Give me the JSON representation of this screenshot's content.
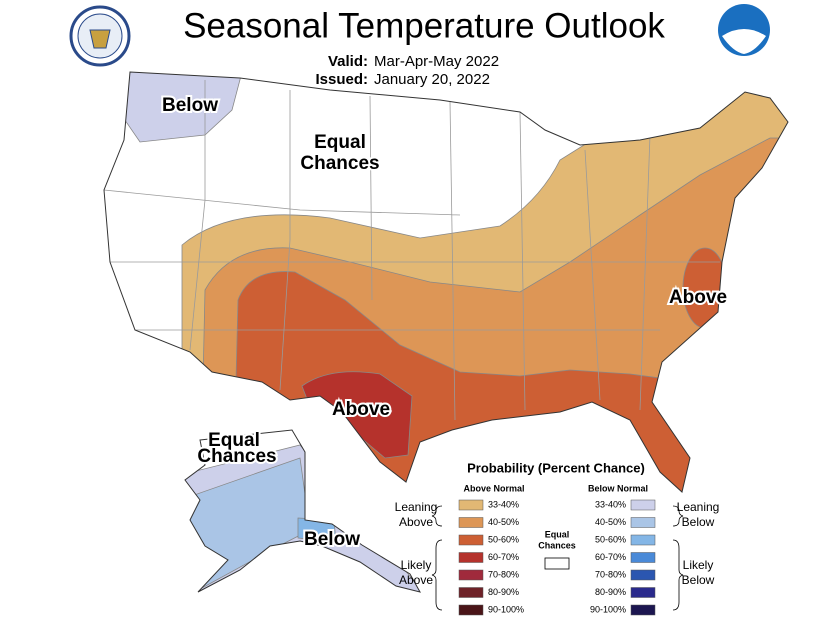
{
  "header": {
    "title": "Seasonal Temperature Outlook",
    "valid_label": "Valid:",
    "valid": "Mar-Apr-May 2022",
    "issued_label": "Issued:",
    "issued": "January 20, 2022"
  },
  "map_labels": [
    {
      "lines": [
        "Below"
      ]
    },
    {
      "lines": [
        "Equal",
        "Chances"
      ]
    },
    {
      "lines": [
        "Above"
      ]
    },
    {
      "lines": [
        "Above"
      ]
    },
    {
      "lines": [
        "Equal",
        "Chances"
      ]
    },
    {
      "lines": [
        "Below"
      ]
    }
  ],
  "legend": {
    "title": "Probability (Percent Chance)",
    "equal": {
      "lines": [
        "Equal",
        "Chances"
      ]
    },
    "above": {
      "heading": "Above Normal",
      "groups": [
        {
          "lines": [
            "Leaning",
            "Above"
          ]
        },
        {
          "lines": [
            "Likely",
            "Above"
          ]
        }
      ],
      "items": [
        {
          "label": "33-40%",
          "color": "#e2b874"
        },
        {
          "label": "40-50%",
          "color": "#dd9656"
        },
        {
          "label": "50-60%",
          "color": "#cd5f34"
        },
        {
          "label": "60-70%",
          "color": "#b5322c"
        },
        {
          "label": "70-80%",
          "color": "#a02a3c"
        },
        {
          "label": "80-90%",
          "color": "#6e2228"
        },
        {
          "label": "90-100%",
          "color": "#4a1418"
        }
      ]
    },
    "below": {
      "heading": "Below Normal",
      "groups": [
        {
          "lines": [
            "Leaning",
            "Below"
          ]
        },
        {
          "lines": [
            "Likely",
            "Below"
          ]
        }
      ],
      "items": [
        {
          "label": "33-40%",
          "color": "#cdd0ea"
        },
        {
          "label": "40-50%",
          "color": "#aac5e6"
        },
        {
          "label": "50-60%",
          "color": "#84b6e6"
        },
        {
          "label": "60-70%",
          "color": "#4a8ad8"
        },
        {
          "label": "70-80%",
          "color": "#2b56b0"
        },
        {
          "label": "80-90%",
          "color": "#2a2a8c"
        },
        {
          "label": "90-100%",
          "color": "#1c1650"
        }
      ]
    }
  }
}
